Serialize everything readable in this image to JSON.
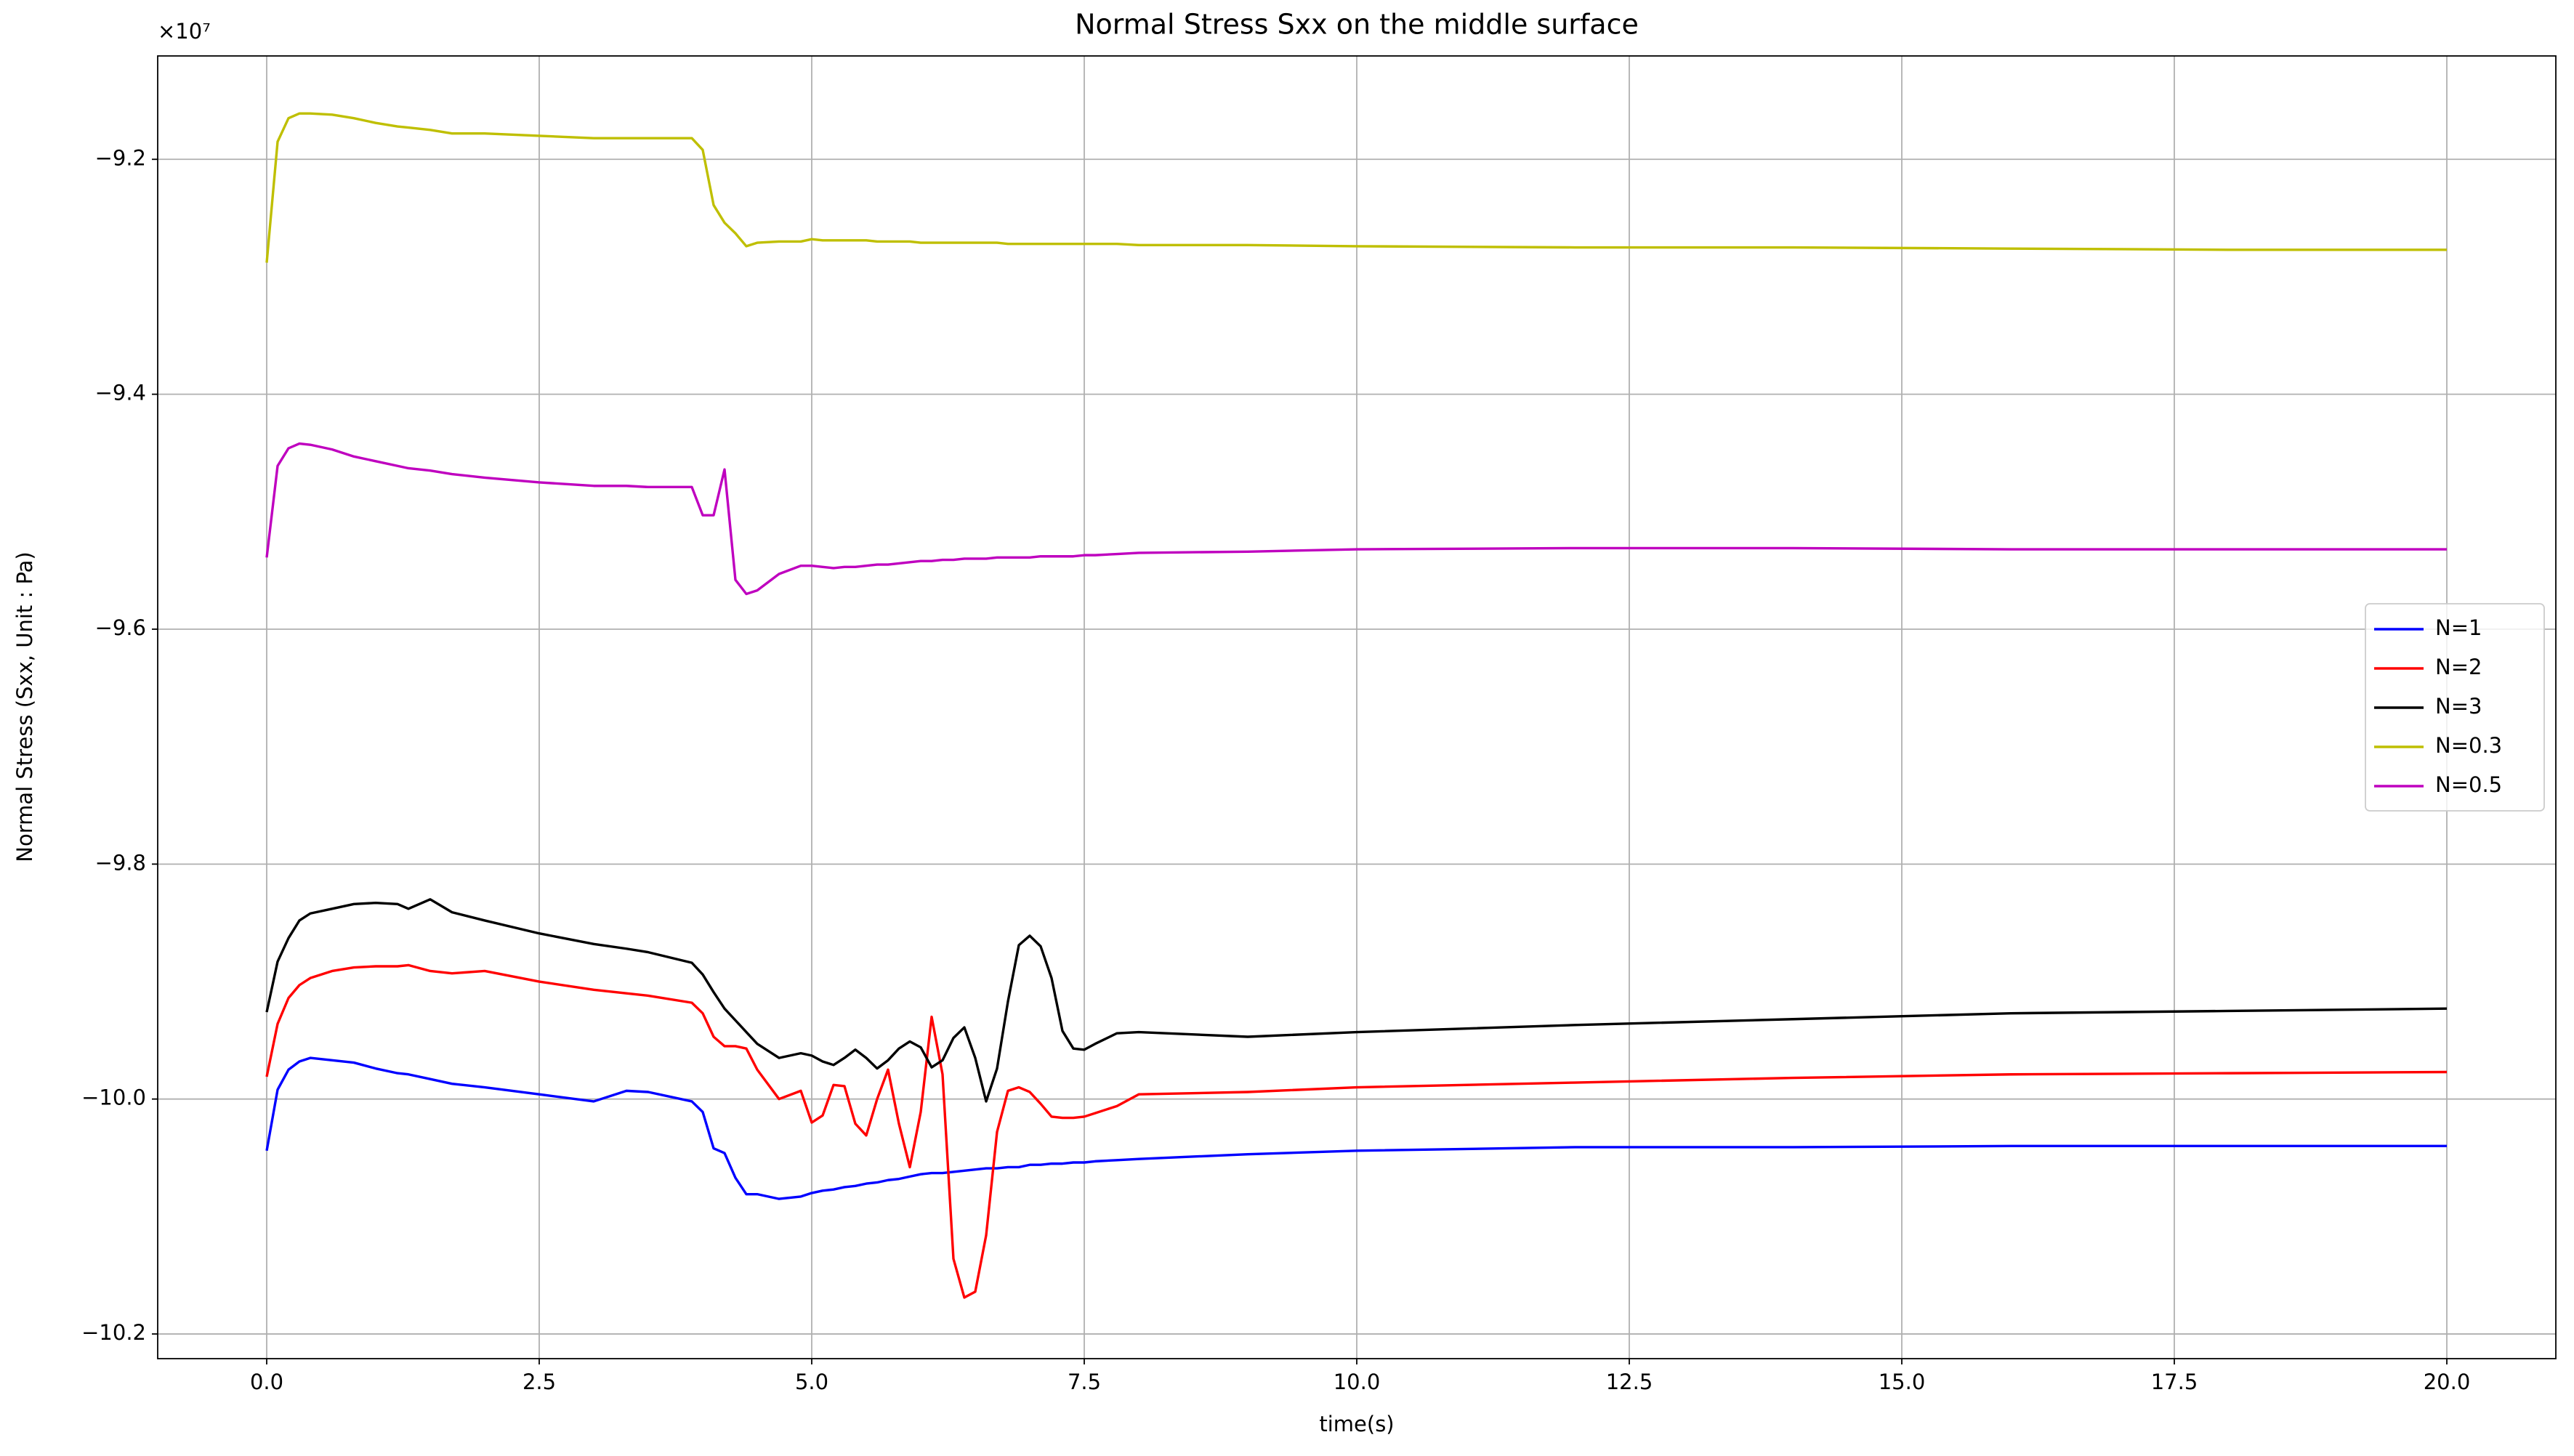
{
  "chart_data": {
    "type": "line",
    "title": "Normal Stress Sxx on the middle surface",
    "x_label": "time(s)",
    "y_label": "Normal Stress (Sxx, Unit : Pa)",
    "y_offset_label": "×10⁷",
    "x": [
      0,
      0.1,
      0.2,
      0.3,
      0.4,
      0.6,
      0.8,
      1.0,
      1.2,
      1.3,
      1.5,
      1.7,
      2.0,
      2.5,
      3.0,
      3.3,
      3.5,
      3.9,
      4.0,
      4.1,
      4.2,
      4.3,
      4.4,
      4.5,
      4.7,
      4.9,
      5.0,
      5.1,
      5.2,
      5.3,
      5.4,
      5.5,
      5.6,
      5.7,
      5.8,
      5.9,
      6.0,
      6.1,
      6.2,
      6.3,
      6.4,
      6.5,
      6.6,
      6.7,
      6.8,
      6.9,
      7.0,
      7.1,
      7.2,
      7.3,
      7.4,
      7.5,
      7.6,
      7.8,
      8.0,
      9.0,
      10.0,
      12.0,
      14.0,
      16.0,
      18.0,
      20.0
    ],
    "series": [
      {
        "name": "N=1",
        "color": "#0000ff",
        "values": [
          -10.044,
          -9.992,
          -9.975,
          -9.968,
          -9.965,
          -9.967,
          -9.969,
          -9.974,
          -9.978,
          -9.979,
          -9.983,
          -9.987,
          -9.99,
          -9.996,
          -10.002,
          -9.993,
          -9.994,
          -10.002,
          -10.011,
          -10.042,
          -10.046,
          -10.067,
          -10.081,
          -10.081,
          -10.085,
          -10.083,
          -10.08,
          -10.078,
          -10.077,
          -10.075,
          -10.074,
          -10.072,
          -10.071,
          -10.069,
          -10.068,
          -10.066,
          -10.064,
          -10.063,
          -10.063,
          -10.062,
          -10.061,
          -10.06,
          -10.059,
          -10.059,
          -10.058,
          -10.058,
          -10.056,
          -10.056,
          -10.055,
          -10.055,
          -10.054,
          -10.054,
          -10.053,
          -10.052,
          -10.051,
          -10.047,
          -10.044,
          -10.041,
          -10.041,
          -10.04,
          -10.04,
          -10.04
        ]
      },
      {
        "name": "N=2",
        "color": "#ff0000",
        "values": [
          -9.981,
          -9.936,
          -9.914,
          -9.903,
          -9.897,
          -9.891,
          -9.888,
          -9.887,
          -9.887,
          -9.886,
          -9.891,
          -9.893,
          -9.891,
          -9.9,
          -9.907,
          -9.91,
          -9.912,
          -9.918,
          -9.927,
          -9.947,
          -9.955,
          -9.955,
          -9.957,
          -9.975,
          -10.0,
          -9.993,
          -10.02,
          -10.014,
          -9.988,
          -9.989,
          -10.021,
          -10.031,
          -10.0,
          -9.975,
          -10.021,
          -10.058,
          -10.011,
          -9.93,
          -9.979,
          -10.136,
          -10.169,
          -10.164,
          -10.116,
          -10.028,
          -9.993,
          -9.99,
          -9.994,
          -10.004,
          -10.015,
          -10.016,
          -10.016,
          -10.015,
          -10.012,
          -10.006,
          -9.996,
          -9.994,
          -9.99,
          -9.986,
          -9.982,
          -9.979,
          -9.978,
          -9.977
        ]
      },
      {
        "name": "N=3",
        "color": "#000000",
        "values": [
          -9.926,
          -9.883,
          -9.863,
          -9.848,
          -9.842,
          -9.838,
          -9.834,
          -9.833,
          -9.834,
          -9.838,
          -9.83,
          -9.841,
          -9.848,
          -9.859,
          -9.868,
          -9.872,
          -9.875,
          -9.884,
          -9.894,
          -9.909,
          -9.923,
          -9.933,
          -9.943,
          -9.953,
          -9.965,
          -9.961,
          -9.963,
          -9.968,
          -9.971,
          -9.965,
          -9.958,
          -9.965,
          -9.974,
          -9.967,
          -9.957,
          -9.951,
          -9.956,
          -9.973,
          -9.967,
          -9.948,
          -9.939,
          -9.965,
          -10.002,
          -9.974,
          -9.917,
          -9.869,
          -9.861,
          -9.87,
          -9.897,
          -9.942,
          -9.957,
          -9.958,
          -9.953,
          -9.944,
          -9.943,
          -9.947,
          -9.943,
          -9.937,
          -9.932,
          -9.927,
          -9.925,
          -9.923
        ]
      },
      {
        "name": "N=0.3",
        "color": "#bfbf00",
        "values": [
          -9.288,
          -9.185,
          -9.165,
          -9.161,
          -9.161,
          -9.162,
          -9.165,
          -9.169,
          -9.172,
          -9.173,
          -9.175,
          -9.178,
          -9.178,
          -9.18,
          -9.182,
          -9.182,
          -9.182,
          -9.182,
          -9.192,
          -9.239,
          -9.254,
          -9.263,
          -9.274,
          -9.271,
          -9.27,
          -9.27,
          -9.268,
          -9.269,
          -9.269,
          -9.269,
          -9.269,
          -9.269,
          -9.27,
          -9.27,
          -9.27,
          -9.27,
          -9.271,
          -9.271,
          -9.271,
          -9.271,
          -9.271,
          -9.271,
          -9.271,
          -9.271,
          -9.272,
          -9.272,
          -9.272,
          -9.272,
          -9.272,
          -9.272,
          -9.272,
          -9.272,
          -9.272,
          -9.272,
          -9.273,
          -9.273,
          -9.274,
          -9.275,
          -9.275,
          -9.276,
          -9.277,
          -9.277
        ]
      },
      {
        "name": "N=0.5",
        "color": "#bf00bf",
        "values": [
          -9.539,
          -9.461,
          -9.446,
          -9.442,
          -9.443,
          -9.447,
          -9.453,
          -9.457,
          -9.461,
          -9.463,
          -9.465,
          -9.468,
          -9.471,
          -9.475,
          -9.478,
          -9.478,
          -9.479,
          -9.479,
          -9.503,
          -9.503,
          -9.464,
          -9.558,
          -9.57,
          -9.567,
          -9.553,
          -9.546,
          -9.546,
          -9.547,
          -9.548,
          -9.547,
          -9.547,
          -9.546,
          -9.545,
          -9.545,
          -9.544,
          -9.543,
          -9.542,
          -9.542,
          -9.541,
          -9.541,
          -9.54,
          -9.54,
          -9.54,
          -9.539,
          -9.539,
          -9.539,
          -9.539,
          -9.538,
          -9.538,
          -9.538,
          -9.538,
          -9.537,
          -9.537,
          -9.536,
          -9.535,
          -9.534,
          -9.532,
          -9.531,
          -9.531,
          -9.532,
          -9.532,
          -9.532
        ]
      }
    ],
    "xlim": [
      -1.0,
      21.0
    ],
    "xticks": [
      {
        "value": 0,
        "label": "0.0"
      },
      2.5,
      {
        "value": 5,
        "label": "5.0"
      },
      7.5,
      {
        "value": 10,
        "label": "10.0"
      },
      12.5,
      {
        "value": 15,
        "label": "15.0"
      },
      17.5,
      {
        "value": 20,
        "label": "20.0"
      }
    ],
    "ylim": [
      -10.221,
      -9.112
    ],
    "yticks": [
      {
        "value": -10.2,
        "label": "−10.2"
      },
      {
        "value": -10.0,
        "label": "−10.0"
      },
      {
        "value": -9.8,
        "label": "−9.8"
      },
      {
        "value": -9.6,
        "label": "−9.6"
      },
      {
        "value": -9.4,
        "label": "−9.4"
      },
      {
        "value": -9.2,
        "label": "−9.2"
      }
    ],
    "grid": true,
    "legend": "center right"
  }
}
